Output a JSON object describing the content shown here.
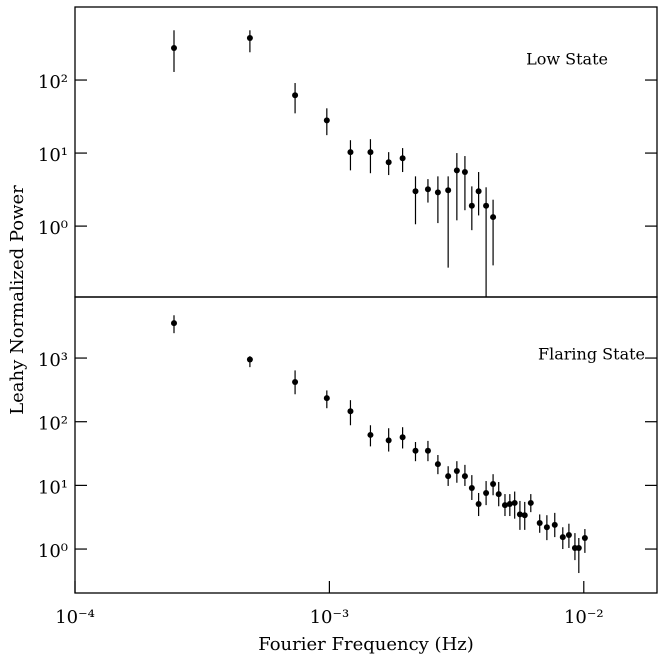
{
  "chart_data": [
    {
      "type": "scatter",
      "annotation": "Low State",
      "color": "#000000",
      "log_x": true,
      "log_y": true,
      "xlim": [
        0.0001,
        0.0194
      ],
      "ylim": [
        0.107,
        1000
      ],
      "yticks": [
        {
          "value": 1,
          "label": "10⁰"
        },
        {
          "value": 10,
          "label": "10¹"
        },
        {
          "value": 100,
          "label": "10²"
        }
      ],
      "x": [
        0.000245,
        0.000487,
        0.000733,
        0.000977,
        0.00121,
        0.00145,
        0.00171,
        0.00194,
        0.00218,
        0.00244,
        0.00267,
        0.00293,
        0.00317,
        0.00341,
        0.00363,
        0.00386,
        0.00413,
        0.0044
      ],
      "values": [
        275,
        376,
        62,
        28,
        10.3,
        10.3,
        7.5,
        8.5,
        3.0,
        3.2,
        2.9,
        3.1,
        5.8,
        5.5,
        1.9,
        3.0,
        1.9,
        1.33
      ],
      "lower": [
        129,
        240,
        35,
        17.6,
        5.8,
        5.3,
        5.0,
        5.5,
        1.06,
        2.1,
        1.1,
        0.27,
        1.2,
        1.65,
        0.88,
        1.4,
        0.107,
        0.29
      ],
      "upper": [
        480,
        480,
        91,
        41,
        15,
        15.5,
        10.3,
        11.7,
        4.8,
        4.4,
        4.8,
        4.8,
        10,
        9.1,
        3.5,
        5.5,
        3.4,
        2.3
      ]
    },
    {
      "type": "scatter",
      "annotation": "Flaring State",
      "color": "#000000",
      "log_x": true,
      "log_y": true,
      "xlim": [
        0.0001,
        0.0194
      ],
      "ylim": [
        0.204,
        9100
      ],
      "xticks": [
        {
          "value": 0.0001,
          "label": "10⁻⁴"
        },
        {
          "value": 0.001,
          "label": "10⁻³"
        },
        {
          "value": 0.01,
          "label": "10⁻²"
        }
      ],
      "yticks": [
        {
          "value": 1,
          "label": "10⁰"
        },
        {
          "value": 10,
          "label": "10¹"
        },
        {
          "value": 100,
          "label": "10²"
        },
        {
          "value": 1000,
          "label": "10³"
        }
      ],
      "x": [
        0.000245,
        0.000487,
        0.000733,
        0.000977,
        0.00121,
        0.00145,
        0.00171,
        0.00194,
        0.00218,
        0.00244,
        0.00267,
        0.00293,
        0.00317,
        0.00341,
        0.00363,
        0.00386,
        0.00413,
        0.0044,
        0.00463,
        0.0049,
        0.00512,
        0.00535,
        0.00561,
        0.00586,
        0.00619,
        0.00671,
        0.00716,
        0.00769,
        0.00827,
        0.00874,
        0.00923,
        0.00956,
        0.0101
      ],
      "values": [
        3540,
        950,
        420,
        235,
        146,
        62,
        51,
        57,
        35,
        35,
        21.6,
        14,
        16.8,
        14,
        9.1,
        5.1,
        7.6,
        10.5,
        7.3,
        4.9,
        5.1,
        5.3,
        3.5,
        3.4,
        5.3,
        2.56,
        2.2,
        2.4,
        1.54,
        1.66,
        1.04,
        1.04,
        1.49
      ],
      "lower": [
        2460,
        720,
        270,
        163,
        88,
        41,
        34,
        38,
        24,
        24,
        15,
        9.8,
        11,
        9.8,
        5.9,
        3.3,
        4.9,
        7.0,
        4.7,
        3.3,
        3.3,
        3.0,
        2.0,
        2.0,
        3.8,
        1.8,
        1.38,
        1.54,
        1.0,
        1.04,
        0.67,
        0.42,
        0.87
      ],
      "upper": [
        4700,
        1070,
        640,
        310,
        218,
        88,
        79,
        82,
        48,
        50,
        30,
        20,
        24,
        21,
        14.5,
        7.6,
        11.7,
        15,
        11.3,
        7.3,
        7.3,
        8.0,
        5.7,
        5.5,
        7.3,
        3.5,
        3.4,
        3.7,
        2.2,
        2.5,
        1.78,
        1.49,
        2.06
      ]
    }
  ],
  "xlabel": "Fourier Frequency (Hz)",
  "ylabel": "Leahy Normalized Power"
}
